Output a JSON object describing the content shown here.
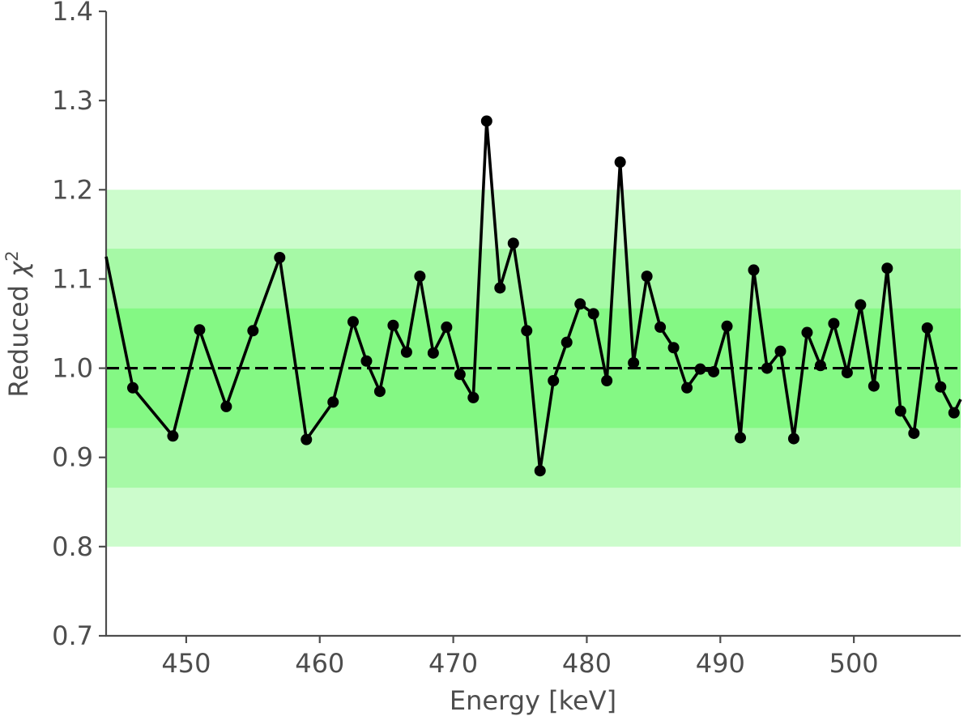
{
  "chart_data": {
    "type": "line",
    "title": "",
    "xlabel": "Energy [keV]",
    "ylabel_text": "Reduced ",
    "ylabel_symbol": "χ",
    "ylabel_superscript": "2",
    "xlim": [
      444,
      508
    ],
    "ylim": [
      0.7,
      1.4
    ],
    "xticks": [
      450,
      460,
      470,
      480,
      490,
      500
    ],
    "xtick_labels": [
      "450",
      "460",
      "470",
      "480",
      "490",
      "500"
    ],
    "yticks": [
      0.7,
      0.8,
      0.9,
      1.0,
      1.1,
      1.2,
      1.3,
      1.4
    ],
    "ytick_labels": [
      "0.7",
      "0.8",
      "0.9",
      "1.0",
      "1.1",
      "1.2",
      "1.3",
      "1.4"
    ],
    "grid": false,
    "reference_line": {
      "y": 1.0,
      "style": "dashed",
      "color": "#000000"
    },
    "bands": [
      {
        "y": [
          0.8,
          1.2
        ],
        "color": "#ccfccc"
      },
      {
        "y": [
          0.866,
          1.134
        ],
        "color": "#a6f9a6"
      },
      {
        "y": [
          0.933,
          1.067
        ],
        "color": "#84f884"
      }
    ],
    "series": [
      {
        "color": "#000000",
        "line_start": {
          "x": 444,
          "y": 1.125
        },
        "line_end": {
          "x": 508,
          "y": 0.965
        },
        "x": [
          446,
          449,
          451,
          453,
          455,
          457,
          459,
          461,
          462.5,
          463.5,
          464.5,
          465.5,
          466.5,
          467.5,
          468.5,
          469.5,
          470.5,
          471.5,
          472.5,
          473.5,
          474.5,
          475.5,
          476.5,
          477.5,
          478.5,
          479.5,
          480.5,
          481.5,
          482.5,
          483.5,
          484.5,
          485.5,
          486.5,
          487.5,
          488.5,
          489.5,
          490.5,
          491.5,
          492.5,
          493.5,
          494.5,
          495.5,
          496.5,
          497.5,
          498.5,
          499.5,
          500.5,
          501.5,
          502.5,
          503.5,
          504.5,
          505.5,
          506.5,
          507.5
        ],
        "y": [
          0.978,
          0.924,
          1.043,
          0.957,
          1.042,
          1.124,
          0.92,
          0.962,
          1.052,
          1.008,
          0.974,
          1.048,
          1.018,
          1.103,
          1.017,
          1.046,
          0.993,
          0.967,
          1.277,
          1.09,
          1.14,
          1.042,
          0.885,
          0.986,
          1.029,
          1.072,
          1.061,
          0.986,
          1.231,
          1.006,
          1.103,
          1.046,
          1.023,
          0.978,
          0.999,
          0.996,
          1.047,
          0.922,
          1.11,
          1.0,
          1.019,
          0.921,
          1.04,
          1.003,
          1.05,
          0.995,
          1.071,
          0.98,
          1.112,
          0.952,
          0.927,
          1.045,
          0.979,
          0.95
        ]
      }
    ]
  }
}
